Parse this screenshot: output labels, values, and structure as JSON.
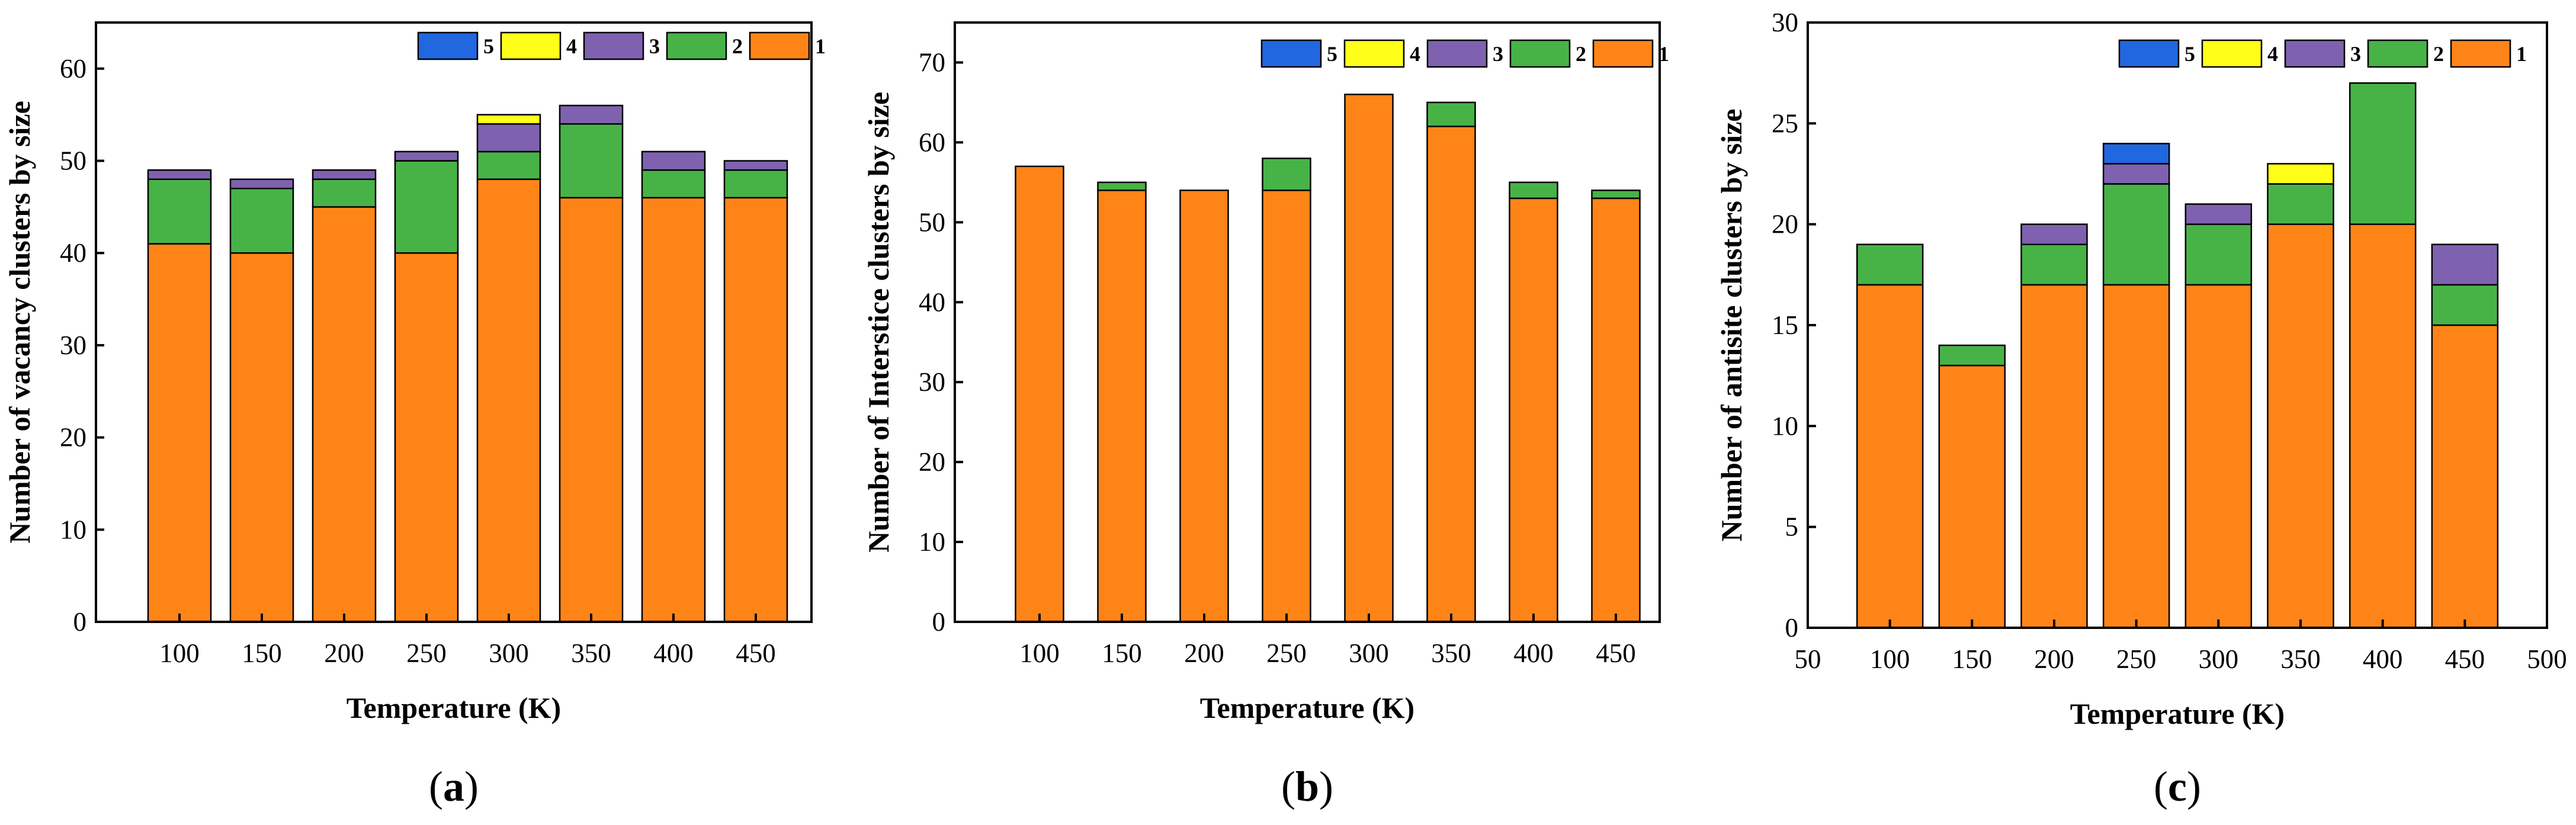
{
  "colors": {
    "size1": "#FF8418",
    "size2": "#47B347",
    "size3": "#7E62B0",
    "size4": "#FFFF1A",
    "size5": "#2167E0"
  },
  "chart_data": [
    {
      "type": "bar",
      "stacked": true,
      "panel_label": "a",
      "xlabel": "Temperature (K)",
      "ylabel": "Number of vacancy clusters by size",
      "categories": [
        "100",
        "150",
        "200",
        "250",
        "300",
        "350",
        "400",
        "450"
      ],
      "x_ticks": [
        "100",
        "150",
        "200",
        "250",
        "300",
        "350",
        "400",
        "450"
      ],
      "ylim": [
        0,
        65
      ],
      "y_ticks": [
        "0",
        "10",
        "20",
        "30",
        "40",
        "50",
        "60"
      ],
      "legend_position": "top-right",
      "legend": [
        "5",
        "4",
        "3",
        "2",
        "1"
      ],
      "series": [
        {
          "name": "1",
          "values": [
            41,
            40,
            45,
            40,
            48,
            46,
            46,
            46
          ]
        },
        {
          "name": "2",
          "values": [
            7,
            7,
            3,
            10,
            3,
            8,
            3,
            3
          ]
        },
        {
          "name": "3",
          "values": [
            1,
            1,
            1,
            1,
            3,
            2,
            2,
            1
          ]
        },
        {
          "name": "4",
          "values": [
            0,
            0,
            0,
            0,
            1,
            0,
            0,
            0
          ]
        },
        {
          "name": "5",
          "values": [
            0,
            0,
            0,
            0,
            0,
            0,
            0,
            0
          ]
        }
      ]
    },
    {
      "type": "bar",
      "stacked": true,
      "panel_label": "b",
      "xlabel": "Temperature (K)",
      "ylabel": "Number of  Interstice clusters by size",
      "categories": [
        "100",
        "150",
        "200",
        "250",
        "300",
        "350",
        "400",
        "450"
      ],
      "x_ticks": [
        "100",
        "150",
        "200",
        "250",
        "300",
        "350",
        "400",
        "450"
      ],
      "ylim": [
        0,
        75
      ],
      "y_ticks": [
        "0",
        "10",
        "20",
        "30",
        "40",
        "50",
        "60",
        "70"
      ],
      "legend_position": "top-right",
      "legend": [
        "5",
        "4",
        "3",
        "2",
        "1"
      ],
      "series": [
        {
          "name": "1",
          "values": [
            57,
            54,
            54,
            54,
            66,
            62,
            53,
            53
          ]
        },
        {
          "name": "2",
          "values": [
            0,
            1,
            0,
            4,
            0,
            3,
            2,
            1
          ]
        },
        {
          "name": "3",
          "values": [
            0,
            0,
            0,
            0,
            0,
            0,
            0,
            0
          ]
        },
        {
          "name": "4",
          "values": [
            0,
            0,
            0,
            0,
            0,
            0,
            0,
            0
          ]
        },
        {
          "name": "5",
          "values": [
            0,
            0,
            0,
            0,
            0,
            0,
            0,
            0
          ]
        }
      ]
    },
    {
      "type": "bar",
      "stacked": true,
      "panel_label": "c",
      "xlabel": "Temperature (K)",
      "ylabel": "Number of antisite clusters by size",
      "categories": [
        "100",
        "150",
        "200",
        "250",
        "300",
        "350",
        "400",
        "450"
      ],
      "x_ticks": [
        "50",
        "100",
        "150",
        "200",
        "250",
        "300",
        "350",
        "400",
        "450",
        "500"
      ],
      "xlim": [
        50,
        500
      ],
      "ylim": [
        0,
        30
      ],
      "y_ticks": [
        "0",
        "5",
        "10",
        "15",
        "20",
        "25",
        "30"
      ],
      "legend_position": "top-right",
      "legend": [
        "5",
        "4",
        "3",
        "2",
        "1"
      ],
      "series": [
        {
          "name": "1",
          "values": [
            17,
            13,
            17,
            17,
            17,
            20,
            20,
            15
          ]
        },
        {
          "name": "2",
          "values": [
            2,
            1,
            2,
            5,
            3,
            2,
            7,
            2
          ]
        },
        {
          "name": "3",
          "values": [
            0,
            0,
            1,
            1,
            1,
            0,
            0,
            2
          ]
        },
        {
          "name": "4",
          "values": [
            0,
            0,
            0,
            0,
            0,
            1,
            0,
            0
          ]
        },
        {
          "name": "5",
          "values": [
            0,
            0,
            0,
            1,
            0,
            0,
            0,
            0
          ]
        }
      ]
    }
  ]
}
